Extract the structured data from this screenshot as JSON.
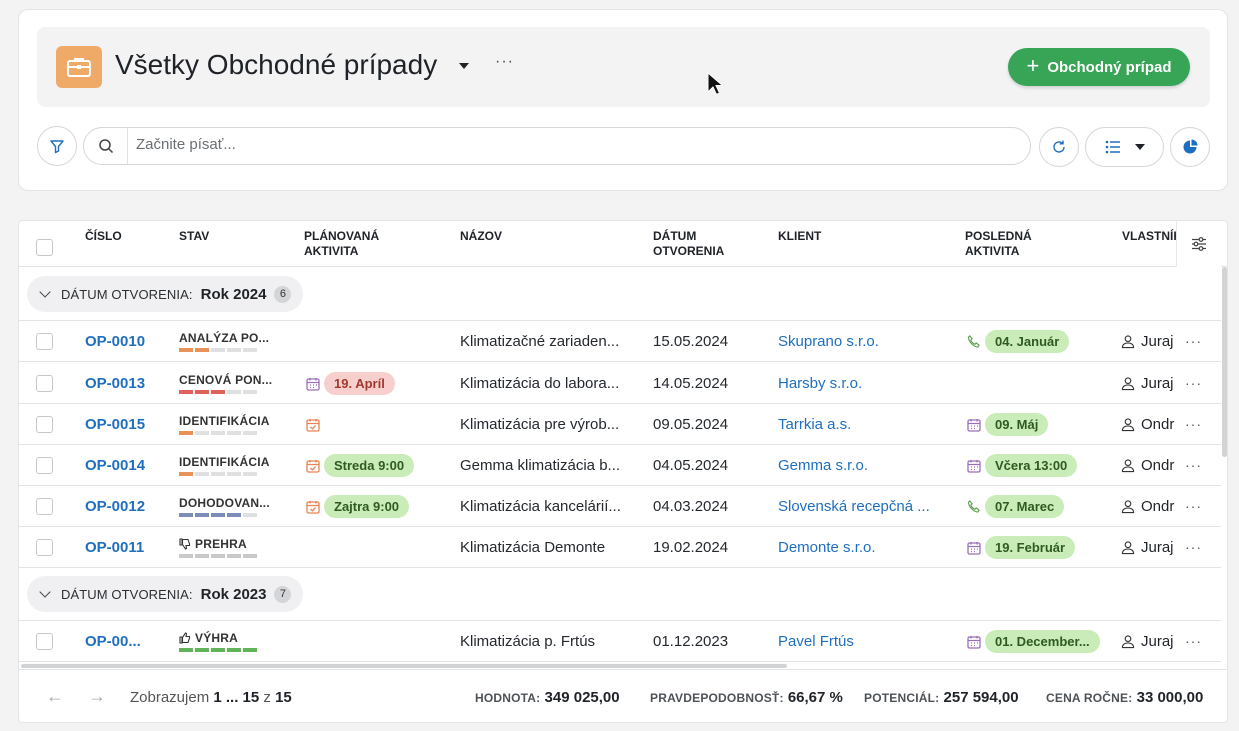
{
  "header": {
    "title": "Všetky Obchodné prípady",
    "more": "···",
    "create_label": "Obchodný prípad",
    "create_plus": "+"
  },
  "toolbar": {
    "search_placeholder": "Začnite písať..."
  },
  "table": {
    "columns": [
      "ČÍSLO",
      "STAV",
      "PLÁNOVANÁ AKTIVITA",
      "NÁZOV",
      "DÁTUM OTVORENIA",
      "KLIENT",
      "POSLEDNÁ AKTIVITA",
      "VLASTNÍK"
    ],
    "col_labels": {
      "cislo": "ČÍSLO",
      "stav": "STAV",
      "planovana_1": "PLÁNOVANÁ",
      "planovana_2": "AKTIVITA",
      "nazov": "NÁZOV",
      "datum_1": "DÁTUM",
      "datum_2": "OTVORENIA",
      "klient": "KLIENT",
      "posledna_1": "POSLEDNÁ",
      "posledna_2": "AKTIVITA",
      "vlastnik": "VLASTNÍK"
    },
    "groups": [
      {
        "label": "DÁTUM OTVORENIA:",
        "value": "Rok 2024",
        "count": "6",
        "rows": [
          {
            "num": "OP-0010",
            "stav": "ANALÝZA PO...",
            "stav_filled": 2,
            "stav_color": "#e8925a",
            "planned": "",
            "planned_icon": "",
            "planned_style": "",
            "name": "Klimatizačné zariaden...",
            "date": "15.05.2024",
            "client": "Skuprano s.r.o.",
            "last_icon": "phone-icon",
            "last": "04. Január",
            "owner": "Juraj"
          },
          {
            "num": "OP-0013",
            "stav": "CENOVÁ PON...",
            "stav_filled": 3,
            "stav_color": "#e0605a",
            "planned": "19. Apríl",
            "planned_icon": "calendar-icon",
            "planned_style": "red",
            "name": "Klimatizácia do labora...",
            "date": "14.05.2024",
            "client": "Harsby s.r.o.",
            "last_icon": "",
            "last": "",
            "owner": "Juraj"
          },
          {
            "num": "OP-0015",
            "stav": "IDENTIFIKÁCIA",
            "stav_filled": 1,
            "stav_color": "#e8925a",
            "planned": "",
            "planned_icon": "task-icon",
            "planned_style": "",
            "name": "Klimatizácia pre výrob...",
            "date": "09.05.2024",
            "client": "Tarrkia a.s.",
            "last_icon": "calendar-icon",
            "last": "09. Máj",
            "owner": "Ondr"
          },
          {
            "num": "OP-0014",
            "stav": "IDENTIFIKÁCIA",
            "stav_filled": 1,
            "stav_color": "#e8925a",
            "planned": "Streda 9:00",
            "planned_icon": "task-icon",
            "planned_style": "green",
            "name": "Gemma klimatizácia b...",
            "date": "04.05.2024",
            "client": "Gemma s.r.o.",
            "last_icon": "calendar-icon",
            "last": "Včera 13:00",
            "owner": "Ondr"
          },
          {
            "num": "OP-0012",
            "stav": "DOHODOVAN...",
            "stav_filled": 4,
            "stav_color": "#7b8db8",
            "planned": "Zajtra 9:00",
            "planned_icon": "task-icon",
            "planned_style": "green",
            "name": "Klimatizácia kancelárií...",
            "date": "04.03.2024",
            "client": "Slovenská recepčná ...",
            "last_icon": "phone-icon",
            "last": "07. Marec",
            "owner": "Ondr"
          },
          {
            "num": "OP-0011",
            "stav": "PREHRA",
            "stav_filled": 5,
            "stav_color": "#c9c9cb",
            "stav_icon": "thumb-down-icon",
            "planned": "",
            "planned_icon": "",
            "planned_style": "",
            "name": "Klimatizácia Demonte",
            "date": "19.02.2024",
            "client": "Demonte s.r.o.",
            "last_icon": "calendar-icon",
            "last": "19. Február",
            "owner": "Juraj"
          }
        ]
      },
      {
        "label": "DÁTUM OTVORENIA:",
        "value": "Rok 2023",
        "count": "7",
        "rows": [
          {
            "num": "OP-00...",
            "stav": "VÝHRA",
            "stav_filled": 5,
            "stav_color": "#5fb45a",
            "stav_icon": "thumb-up-icon",
            "planned": "",
            "planned_icon": "",
            "planned_style": "",
            "name": "Klimatizácia p. Frtús",
            "date": "01.12.2023",
            "client": "Pavel Frtús",
            "last_icon": "calendar-icon",
            "last": "01. December...",
            "owner": "Juraj"
          }
        ]
      }
    ],
    "row_more": "···"
  },
  "footer": {
    "pag_prefix": "Zobrazujem",
    "pag_range": "1 ... 15",
    "pag_of": "z",
    "pag_total": "15",
    "stats": [
      {
        "key": "HODNOTA:",
        "value": "349 025,00"
      },
      {
        "key": "PRAVDEPODOBNOSŤ:",
        "value": "66,67 %"
      },
      {
        "key": "POTENCIÁL:",
        "value": "257 594,00"
      },
      {
        "key": "CENA ROČNE:",
        "value": "33 000,00"
      }
    ]
  },
  "colors": {
    "accent_green": "#37a456",
    "link_blue": "#1f6fc0",
    "app_icon_orange": "#f0aa68",
    "badge_green": "#c9ecb8",
    "badge_red": "#f7d0cd",
    "calendar_purple": "#9a6fb7",
    "task_orange": "#e9824e",
    "phone_green": "#5a9e4c"
  }
}
